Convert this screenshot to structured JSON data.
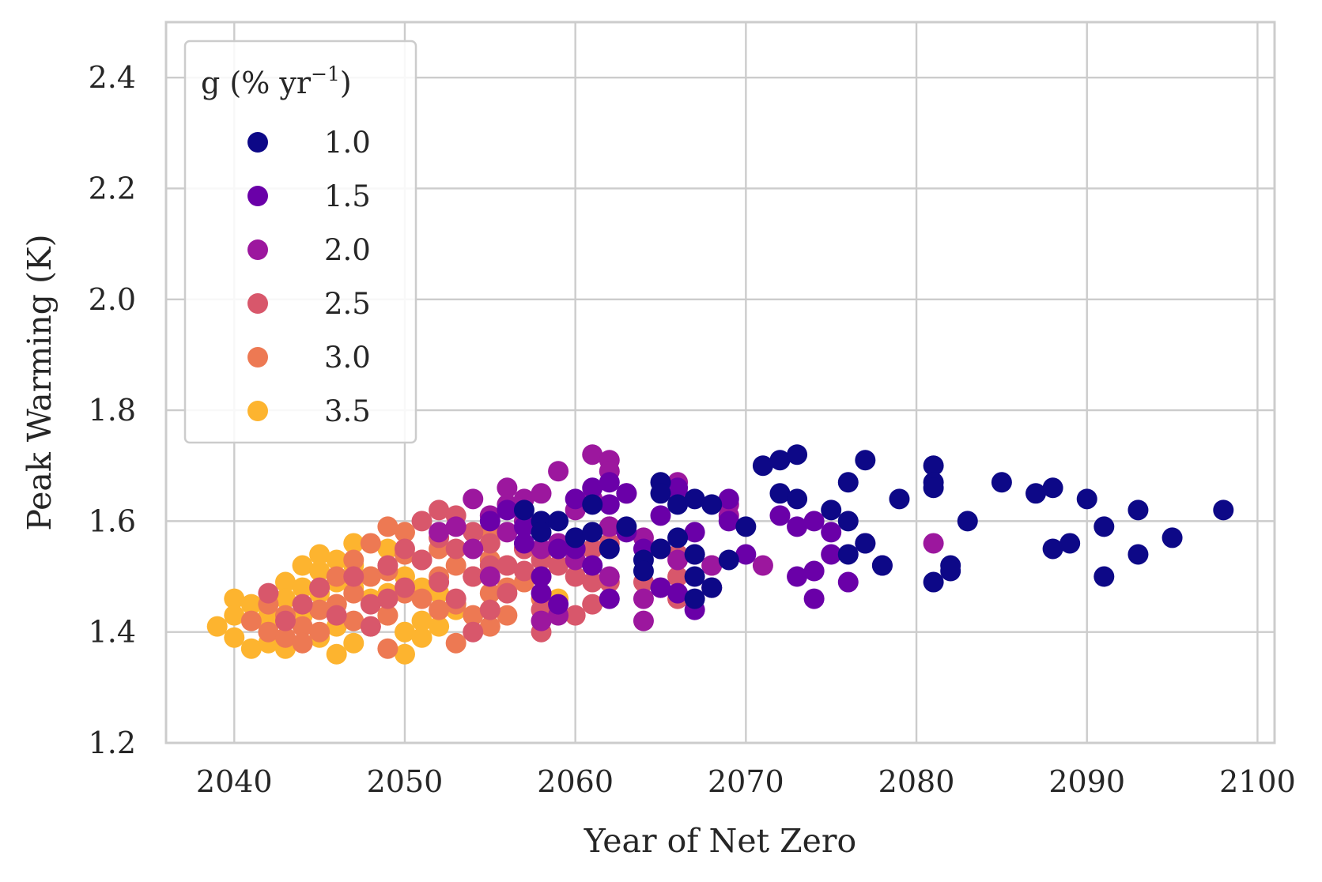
{
  "chart_data": {
    "type": "scatter",
    "xlabel": "Year of Net Zero",
    "ylabel": "Peak Warming (K)",
    "xlim": [
      2036,
      2101
    ],
    "ylim": [
      1.2,
      2.5
    ],
    "xticks": [
      2040,
      2050,
      2060,
      2070,
      2080,
      2090,
      2100
    ],
    "yticks": [
      1.2,
      1.4,
      1.6,
      1.8,
      2.0,
      2.2,
      2.4
    ],
    "xtick_labels": [
      "2040",
      "2050",
      "2060",
      "2070",
      "2080",
      "2090",
      "2100"
    ],
    "ytick_labels": [
      "1.2",
      "1.4",
      "1.6",
      "1.8",
      "2.0",
      "2.2",
      "2.4"
    ],
    "grid": true,
    "legend": {
      "placement": "upper-left",
      "title_main": "g (% yr",
      "title_sup": "−1",
      "title_end": ")"
    },
    "series": [
      {
        "name": "1.0",
        "color": "#0d0887",
        "points": [
          [
            2057,
            1.62
          ],
          [
            2058,
            1.6
          ],
          [
            2058,
            1.58
          ],
          [
            2059,
            1.6
          ],
          [
            2060,
            1.57
          ],
          [
            2061,
            1.58
          ],
          [
            2061,
            1.63
          ],
          [
            2062,
            1.55
          ],
          [
            2063,
            1.59
          ],
          [
            2064,
            1.53
          ],
          [
            2064,
            1.51
          ],
          [
            2065,
            1.67
          ],
          [
            2065,
            1.65
          ],
          [
            2065,
            1.55
          ],
          [
            2066,
            1.63
          ],
          [
            2066,
            1.57
          ],
          [
            2067,
            1.64
          ],
          [
            2067,
            1.54
          ],
          [
            2067,
            1.5
          ],
          [
            2067,
            1.46
          ],
          [
            2068,
            1.63
          ],
          [
            2068,
            1.48
          ],
          [
            2069,
            1.53
          ],
          [
            2070,
            1.59
          ],
          [
            2071,
            1.7
          ],
          [
            2072,
            1.71
          ],
          [
            2072,
            1.65
          ],
          [
            2073,
            1.72
          ],
          [
            2073,
            1.64
          ],
          [
            2075,
            1.62
          ],
          [
            2076,
            1.67
          ],
          [
            2076,
            1.6
          ],
          [
            2076,
            1.54
          ],
          [
            2077,
            1.71
          ],
          [
            2077,
            1.56
          ],
          [
            2078,
            1.52
          ],
          [
            2079,
            1.64
          ],
          [
            2081,
            1.7
          ],
          [
            2081,
            1.67
          ],
          [
            2081,
            1.66
          ],
          [
            2081,
            1.49
          ],
          [
            2082,
            1.52
          ],
          [
            2082,
            1.51
          ],
          [
            2083,
            1.6
          ],
          [
            2085,
            1.67
          ],
          [
            2087,
            1.65
          ],
          [
            2088,
            1.66
          ],
          [
            2088,
            1.55
          ],
          [
            2089,
            1.56
          ],
          [
            2090,
            1.64
          ],
          [
            2091,
            1.59
          ],
          [
            2091,
            1.5
          ],
          [
            2093,
            1.62
          ],
          [
            2093,
            1.54
          ],
          [
            2095,
            1.57
          ],
          [
            2098,
            1.62
          ]
        ]
      },
      {
        "name": "1.5",
        "color": "#6a00a8",
        "points": [
          [
            2055,
            1.6
          ],
          [
            2056,
            1.62
          ],
          [
            2057,
            1.59
          ],
          [
            2057,
            1.56
          ],
          [
            2058,
            1.5
          ],
          [
            2058,
            1.47
          ],
          [
            2059,
            1.55
          ],
          [
            2059,
            1.45
          ],
          [
            2060,
            1.64
          ],
          [
            2060,
            1.55
          ],
          [
            2061,
            1.66
          ],
          [
            2061,
            1.52
          ],
          [
            2062,
            1.67
          ],
          [
            2062,
            1.63
          ],
          [
            2062,
            1.46
          ],
          [
            2063,
            1.65
          ],
          [
            2063,
            1.58
          ],
          [
            2064,
            1.55
          ],
          [
            2065,
            1.61
          ],
          [
            2065,
            1.48
          ],
          [
            2066,
            1.66
          ],
          [
            2066,
            1.47
          ],
          [
            2067,
            1.58
          ],
          [
            2067,
            1.44
          ],
          [
            2068,
            1.48
          ],
          [
            2069,
            1.64
          ],
          [
            2069,
            1.6
          ],
          [
            2070,
            1.54
          ],
          [
            2072,
            1.61
          ],
          [
            2073,
            1.59
          ],
          [
            2073,
            1.5
          ],
          [
            2074,
            1.6
          ],
          [
            2074,
            1.51
          ],
          [
            2074,
            1.46
          ],
          [
            2075,
            1.58
          ],
          [
            2075,
            1.54
          ],
          [
            2076,
            1.49
          ],
          [
            2077,
            1.56
          ],
          [
            2078,
            1.52
          ]
        ]
      },
      {
        "name": "2.0",
        "color": "#9c179e",
        "points": [
          [
            2052,
            1.58
          ],
          [
            2053,
            1.59
          ],
          [
            2054,
            1.64
          ],
          [
            2054,
            1.55
          ],
          [
            2055,
            1.61
          ],
          [
            2055,
            1.5
          ],
          [
            2056,
            1.66
          ],
          [
            2056,
            1.63
          ],
          [
            2056,
            1.58
          ],
          [
            2057,
            1.64
          ],
          [
            2057,
            1.6
          ],
          [
            2058,
            1.65
          ],
          [
            2058,
            1.55
          ],
          [
            2058,
            1.42
          ],
          [
            2059,
            1.69
          ],
          [
            2059,
            1.56
          ],
          [
            2059,
            1.43
          ],
          [
            2060,
            1.62
          ],
          [
            2060,
            1.53
          ],
          [
            2061,
            1.72
          ],
          [
            2061,
            1.64
          ],
          [
            2062,
            1.71
          ],
          [
            2062,
            1.69
          ],
          [
            2062,
            1.59
          ],
          [
            2062,
            1.5
          ],
          [
            2063,
            1.65
          ],
          [
            2064,
            1.57
          ],
          [
            2064,
            1.46
          ],
          [
            2064,
            1.42
          ],
          [
            2065,
            1.55
          ],
          [
            2066,
            1.67
          ],
          [
            2066,
            1.65
          ],
          [
            2066,
            1.53
          ],
          [
            2067,
            1.54
          ],
          [
            2068,
            1.52
          ],
          [
            2069,
            1.63
          ],
          [
            2069,
            1.61
          ],
          [
            2071,
            1.52
          ],
          [
            2081,
            1.56
          ]
        ]
      },
      {
        "name": "2.5",
        "color": "#d8576b",
        "points": [
          [
            2042,
            1.47
          ],
          [
            2043,
            1.42
          ],
          [
            2044,
            1.45
          ],
          [
            2045,
            1.48
          ],
          [
            2046,
            1.43
          ],
          [
            2047,
            1.5
          ],
          [
            2048,
            1.45
          ],
          [
            2048,
            1.41
          ],
          [
            2049,
            1.52
          ],
          [
            2049,
            1.46
          ],
          [
            2050,
            1.55
          ],
          [
            2050,
            1.48
          ],
          [
            2051,
            1.6
          ],
          [
            2051,
            1.53
          ],
          [
            2052,
            1.62
          ],
          [
            2052,
            1.57
          ],
          [
            2052,
            1.49
          ],
          [
            2053,
            1.61
          ],
          [
            2053,
            1.55
          ],
          [
            2053,
            1.46
          ],
          [
            2054,
            1.58
          ],
          [
            2054,
            1.5
          ],
          [
            2054,
            1.4
          ],
          [
            2055,
            1.56
          ],
          [
            2055,
            1.52
          ],
          [
            2055,
            1.44
          ],
          [
            2056,
            1.52
          ],
          [
            2056,
            1.47
          ],
          [
            2057,
            1.55
          ],
          [
            2057,
            1.51
          ],
          [
            2058,
            1.53
          ],
          [
            2058,
            1.44
          ],
          [
            2058,
            1.4
          ],
          [
            2059,
            1.52
          ],
          [
            2060,
            1.5
          ],
          [
            2060,
            1.43
          ],
          [
            2061,
            1.55
          ],
          [
            2061,
            1.49
          ],
          [
            2061,
            1.45
          ],
          [
            2062,
            1.59
          ],
          [
            2062,
            1.56
          ],
          [
            2062,
            1.49
          ],
          [
            2064,
            1.49
          ],
          [
            2065,
            1.55
          ],
          [
            2065,
            1.48
          ],
          [
            2066,
            1.54
          ],
          [
            2066,
            1.5
          ],
          [
            2066,
            1.46
          ],
          [
            2068,
            1.52
          ],
          [
            2068,
            1.48
          ]
        ]
      },
      {
        "name": "3.0",
        "color": "#ed7953",
        "points": [
          [
            2041,
            1.42
          ],
          [
            2042,
            1.45
          ],
          [
            2042,
            1.4
          ],
          [
            2043,
            1.43
          ],
          [
            2043,
            1.39
          ],
          [
            2044,
            1.41
          ],
          [
            2044,
            1.38
          ],
          [
            2045,
            1.44
          ],
          [
            2045,
            1.4
          ],
          [
            2046,
            1.5
          ],
          [
            2046,
            1.45
          ],
          [
            2047,
            1.53
          ],
          [
            2047,
            1.47
          ],
          [
            2047,
            1.42
          ],
          [
            2048,
            1.56
          ],
          [
            2048,
            1.5
          ],
          [
            2048,
            1.41
          ],
          [
            2049,
            1.59
          ],
          [
            2049,
            1.51
          ],
          [
            2049,
            1.43
          ],
          [
            2049,
            1.37
          ],
          [
            2050,
            1.58
          ],
          [
            2050,
            1.54
          ],
          [
            2050,
            1.47
          ],
          [
            2051,
            1.53
          ],
          [
            2051,
            1.46
          ],
          [
            2052,
            1.55
          ],
          [
            2052,
            1.5
          ],
          [
            2052,
            1.44
          ],
          [
            2053,
            1.52
          ],
          [
            2053,
            1.45
          ],
          [
            2053,
            1.38
          ],
          [
            2054,
            1.5
          ],
          [
            2054,
            1.43
          ],
          [
            2055,
            1.58
          ],
          [
            2055,
            1.53
          ],
          [
            2055,
            1.47
          ],
          [
            2055,
            1.41
          ],
          [
            2056,
            1.52
          ],
          [
            2056,
            1.48
          ],
          [
            2056,
            1.43
          ],
          [
            2057,
            1.55
          ],
          [
            2057,
            1.49
          ],
          [
            2058,
            1.5
          ],
          [
            2058,
            1.46
          ]
        ]
      },
      {
        "name": "3.5",
        "color": "#fdb42f",
        "points": [
          [
            2039,
            1.41
          ],
          [
            2040,
            1.46
          ],
          [
            2040,
            1.43
          ],
          [
            2040,
            1.39
          ],
          [
            2041,
            1.45
          ],
          [
            2041,
            1.37
          ],
          [
            2042,
            1.43
          ],
          [
            2042,
            1.41
          ],
          [
            2042,
            1.38
          ],
          [
            2043,
            1.49
          ],
          [
            2043,
            1.46
          ],
          [
            2043,
            1.37
          ],
          [
            2044,
            1.52
          ],
          [
            2044,
            1.48
          ],
          [
            2044,
            1.43
          ],
          [
            2045,
            1.54
          ],
          [
            2045,
            1.51
          ],
          [
            2045,
            1.47
          ],
          [
            2045,
            1.39
          ],
          [
            2046,
            1.53
          ],
          [
            2046,
            1.49
          ],
          [
            2046,
            1.45
          ],
          [
            2046,
            1.41
          ],
          [
            2046,
            1.36
          ],
          [
            2047,
            1.56
          ],
          [
            2047,
            1.52
          ],
          [
            2047,
            1.48
          ],
          [
            2047,
            1.38
          ],
          [
            2048,
            1.5
          ],
          [
            2048,
            1.46
          ],
          [
            2049,
            1.55
          ],
          [
            2049,
            1.52
          ],
          [
            2049,
            1.47
          ],
          [
            2049,
            1.43
          ],
          [
            2050,
            1.5
          ],
          [
            2050,
            1.48
          ],
          [
            2050,
            1.4
          ],
          [
            2050,
            1.36
          ],
          [
            2051,
            1.48
          ],
          [
            2051,
            1.42
          ],
          [
            2051,
            1.39
          ],
          [
            2052,
            1.47
          ],
          [
            2052,
            1.41
          ],
          [
            2053,
            1.44
          ],
          [
            2055,
            1.44
          ],
          [
            2059,
            1.46
          ]
        ]
      }
    ]
  }
}
